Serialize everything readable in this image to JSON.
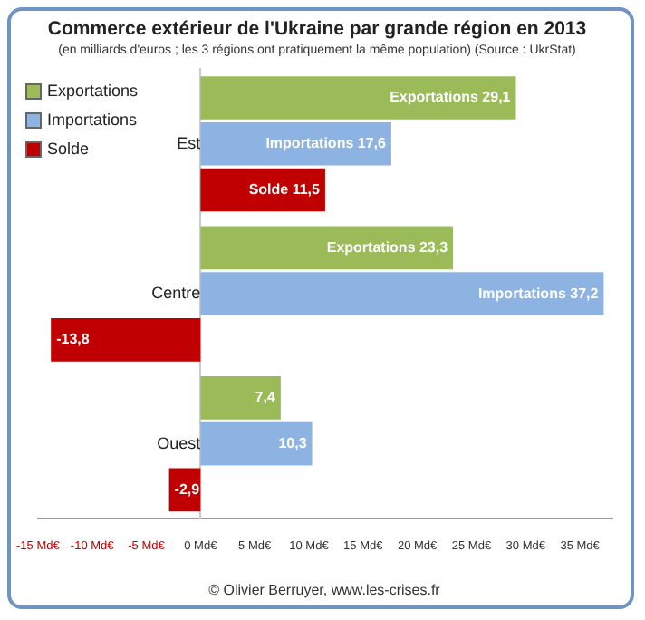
{
  "chart_data": {
    "type": "bar",
    "orientation": "horizontal",
    "title": "Commerce extérieur de l'Ukraine par grande région en 2013",
    "subtitle": "(en milliards d'euros ; les 3 régions ont pratiquement la même population) (Source : UkrStat)",
    "categories": [
      "Est",
      "Centre",
      "Ouest"
    ],
    "series": [
      {
        "name": "Exportations",
        "color": "#9bbb59",
        "values": [
          29.1,
          23.3,
          7.4
        ],
        "value_labels": [
          "Exportations 29,1",
          "Exportations 23,3",
          "7,4"
        ]
      },
      {
        "name": "Importations",
        "color": "#8db3e2",
        "values": [
          17.6,
          37.2,
          10.3
        ],
        "value_labels": [
          "Importations 17,6",
          "Importations 37,2",
          "10,3"
        ]
      },
      {
        "name": "Solde",
        "color": "#c00000",
        "values": [
          11.5,
          -13.8,
          -2.9
        ],
        "value_labels": [
          "Solde 11,5",
          "-13,8",
          "-2,9"
        ]
      }
    ],
    "xlim": [
      -15,
      38
    ],
    "xticks": [
      {
        "value": -15,
        "label": "-15 Md€"
      },
      {
        "value": -10,
        "label": "-10 Md€"
      },
      {
        "value": -5,
        "label": "-5 Md€"
      },
      {
        "value": 0,
        "label": "0 Md€"
      },
      {
        "value": 5,
        "label": "5 Md€"
      },
      {
        "value": 10,
        "label": "10 Md€"
      },
      {
        "value": 15,
        "label": "15 Md€"
      },
      {
        "value": 20,
        "label": "20 Md€"
      },
      {
        "value": 25,
        "label": "25 Md€"
      },
      {
        "value": 30,
        "label": "30 Md€"
      },
      {
        "value": 35,
        "label": "35 Md€"
      }
    ],
    "grid": false,
    "legend": "top left",
    "annotations": [
      "© Olivier Berruyer, www.les-crises.fr"
    ]
  }
}
